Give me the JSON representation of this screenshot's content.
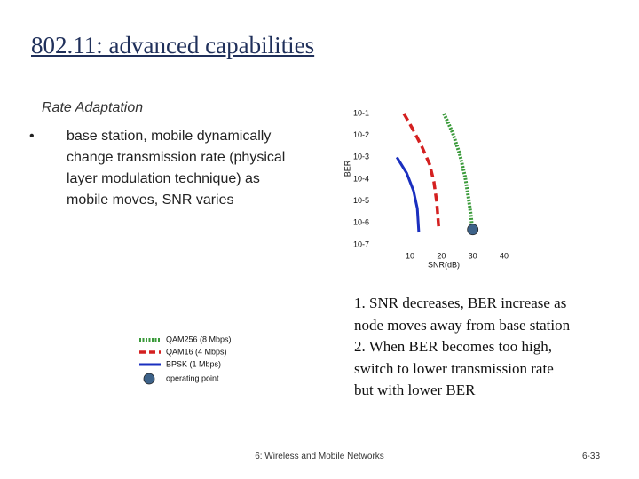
{
  "slide": {
    "title": "802.11: advanced capabilities",
    "subtitle": "Rate Adaptation",
    "bullets": [
      "base station, mobile dynamically change transmission rate (physical layer modulation technique) as mobile moves, SNR varies"
    ],
    "notes": [
      "1. SNR decreases, BER increase as node moves away from base station",
      "2. When BER becomes too high, switch to lower transmission rate but with lower BER"
    ],
    "footer": "6: Wireless and Mobile Networks",
    "page": "6-33"
  },
  "chart_data": {
    "type": "line",
    "xlabel": "SNR(dB)",
    "ylabel": "BER",
    "xlim": [
      5,
      40
    ],
    "ylim": [
      1e-07,
      0.1
    ],
    "ylog": true,
    "xticks": [
      10,
      20,
      30,
      40
    ],
    "yticks": [
      {
        "value": 0.1,
        "label": "10-1"
      },
      {
        "value": 0.01,
        "label": "10-2"
      },
      {
        "value": 0.001,
        "label": "10-3"
      },
      {
        "value": 0.0001,
        "label": "10-4"
      },
      {
        "value": 1e-05,
        "label": "10-5"
      },
      {
        "value": 1e-06,
        "label": "10-6"
      },
      {
        "value": 1e-07,
        "label": "10-7"
      }
    ],
    "series": [
      {
        "name": "QAM256 (8 Mbps)",
        "color": "#3a9a3a",
        "dash": "dotted",
        "x": [
          20.8,
          23.6,
          25.9,
          27.6,
          28.7,
          29.5,
          29.8
        ],
        "values": [
          0.1,
          0.013,
          0.0013,
          0.00012,
          1.2e-05,
          1.8e-06,
          5.4e-07
        ]
      },
      {
        "name": "QAM16 (4 Mbps)",
        "color": "#d42020",
        "dash": "dashed",
        "x": [
          8.0,
          10.8,
          13.7,
          16.2,
          17.6,
          18.5,
          19.1
        ],
        "values": [
          0.1,
          0.02,
          0.0032,
          0.00049,
          7.6e-05,
          8.9e-06,
          7e-07
        ]
      },
      {
        "name": "BPSK (1 Mbps)",
        "color": "#1a2fbf",
        "dash": "solid",
        "x": [
          5.8,
          8.9,
          11.1,
          12.3,
          12.8
        ],
        "values": [
          0.001,
          0.00019,
          3e-05,
          4.6e-06,
          3.7e-07
        ]
      }
    ],
    "point": {
      "name": "operating point",
      "color": "#3d6289",
      "x": 30,
      "y": 5e-07
    }
  }
}
